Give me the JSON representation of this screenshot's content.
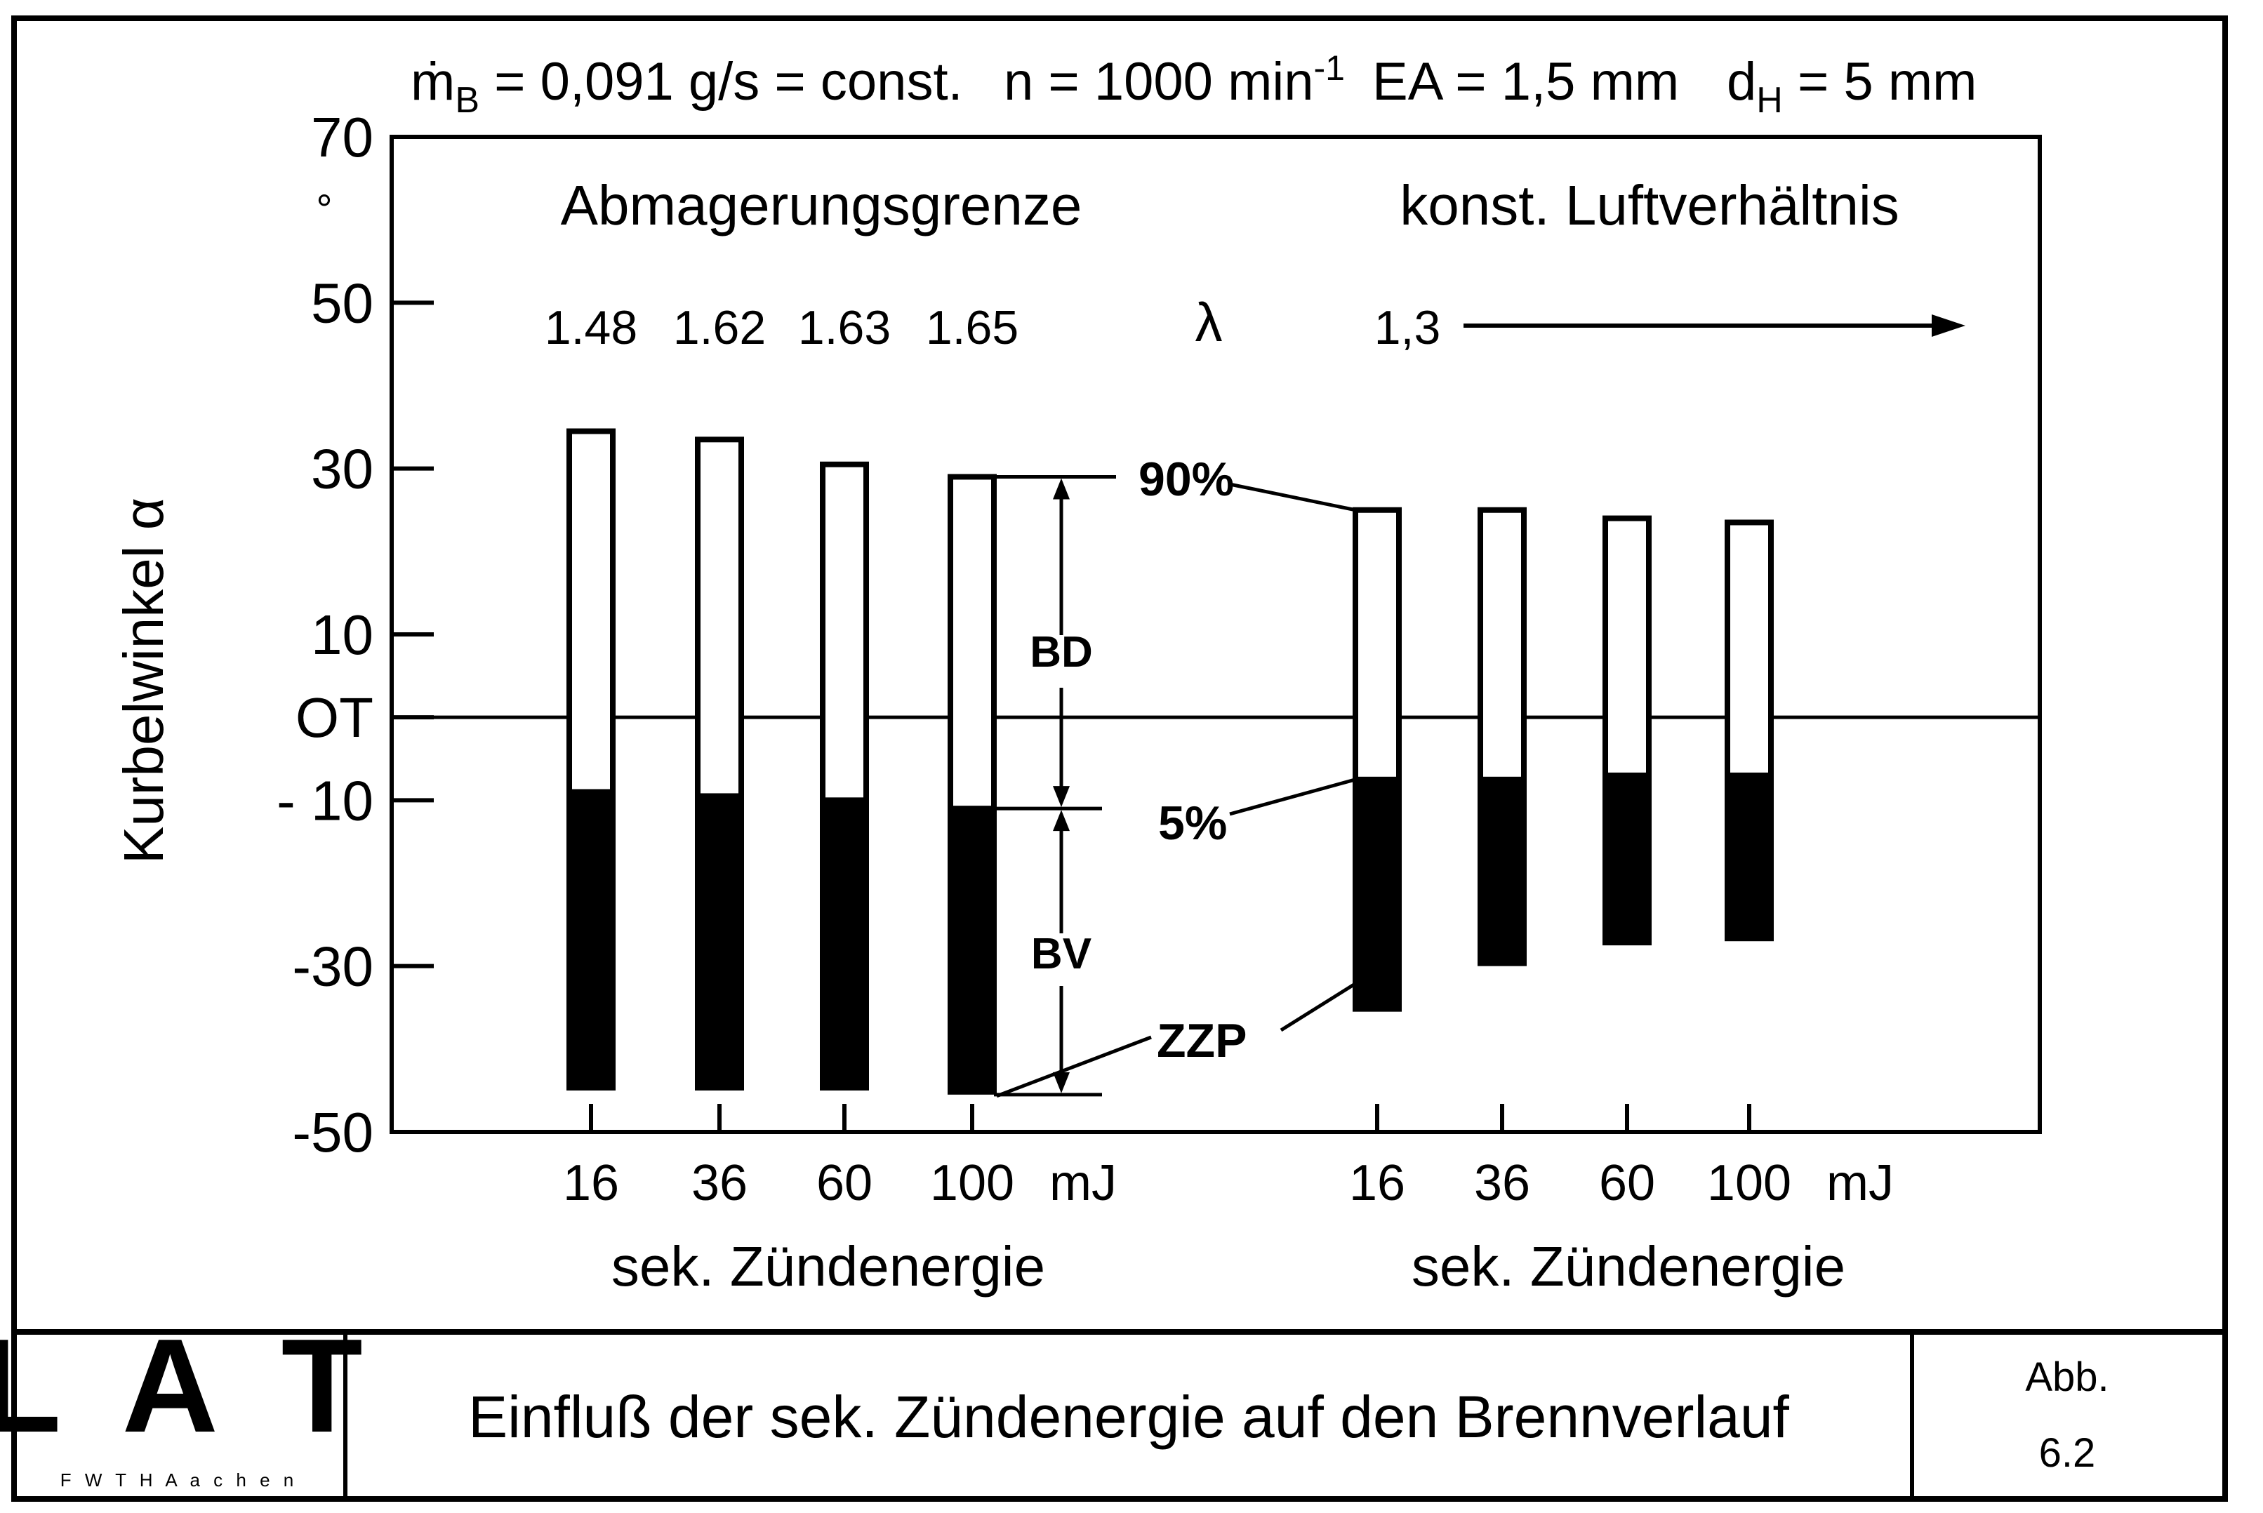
{
  "header": {
    "mb_symbol": "ṁ",
    "mb_sub": "B",
    "mb_value": " = 0,091 g/s = const.",
    "n_text": "n = 1000 min",
    "n_sup": "-1",
    "ea_text": "EA = 1,5 mm",
    "dh_symbol": "d",
    "dh_sub": "H",
    "dh_value": " = 5 mm"
  },
  "footer": {
    "logo_letters": "L A T",
    "logo_subtitle": "F W T H  A a c h e n",
    "caption": "Einfluß der sek. Zündenergie auf den Brennverlauf",
    "figure_label": "Abb.",
    "figure_number": "6.2"
  },
  "colors": {
    "ink": "#000000",
    "paper": "#ffffff"
  },
  "chart_data": {
    "type": "bar",
    "bar_style": "floating range bars: filled black = BV (ZZP to 5%), white = BD (5% to 90%)",
    "ylabel": "Kurbelwinkel α",
    "y_unit": "°",
    "ylim": [
      -50,
      70
    ],
    "y_ticks": [
      {
        "value": 70,
        "label": "70"
      },
      {
        "value": 50,
        "label": "50"
      },
      {
        "value": 30,
        "label": "30"
      },
      {
        "value": 10,
        "label": "10"
      },
      {
        "value": 0,
        "label": "OT"
      },
      {
        "value": -10,
        "label": "- 10"
      },
      {
        "value": -30,
        "label": "-30"
      },
      {
        "value": -50,
        "label": "-50"
      }
    ],
    "reference_line": {
      "value": 0,
      "label": "OT"
    },
    "lambda_symbol": "λ",
    "annotations": {
      "p90": "90%",
      "p5": "5%",
      "zzp": "ZZP",
      "bd": "BD",
      "bv": "BV"
    },
    "groups": [
      {
        "title": "Abmagerungsgrenze",
        "xlabel": "sek. Zündenergie",
        "unit": "mJ",
        "categories": [
          "16",
          "36",
          "60",
          "100"
        ],
        "lambda_values": [
          "1.48",
          "1.62",
          "1.63",
          "1.65"
        ],
        "zzp": [
          -45,
          -45,
          -45,
          -45.5
        ],
        "p5": [
          -9,
          -9.5,
          -10,
          -11
        ],
        "p90": [
          34.5,
          33.5,
          30.5,
          29
        ]
      },
      {
        "title": "konst. Luftverhältnis",
        "xlabel": "sek. Zündenergie",
        "unit": "mJ",
        "categories": [
          "16",
          "36",
          "60",
          "100"
        ],
        "lambda_text": "1,3",
        "zzp": [
          -35.5,
          -30,
          -27.5,
          -27
        ],
        "p5": [
          -7.5,
          -7.5,
          -7,
          -7
        ],
        "p90": [
          25,
          25,
          24,
          23.5
        ]
      }
    ]
  }
}
